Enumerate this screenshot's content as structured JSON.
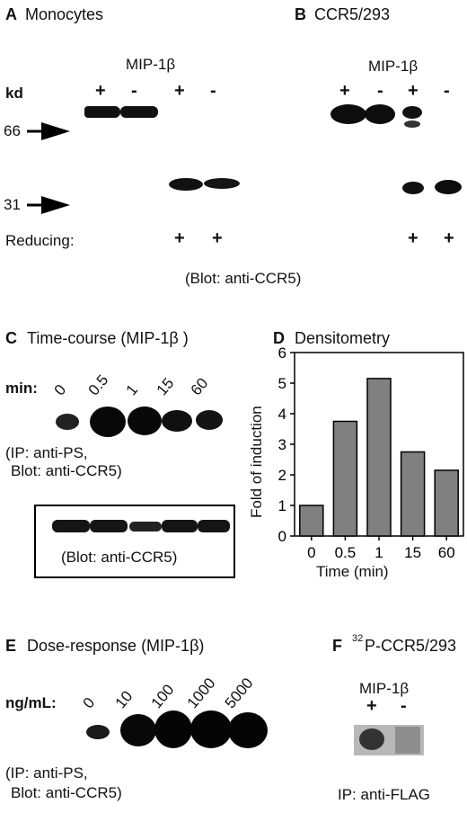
{
  "panelA": {
    "letter": "A",
    "title": "Monocytes",
    "treatment": "MIP-1β",
    "kd": "kd",
    "plus1": "+",
    "minus1": "-",
    "plus2": "+",
    "minus2": "-",
    "marker66": "66",
    "marker31": "31",
    "reducing": "Reducing:",
    "rplus1": "+",
    "rplus2": "+",
    "blot": "(Blot: anti-CCR5)"
  },
  "panelB": {
    "letter": "B",
    "title": "CCR5/293",
    "treatment": "MIP-1β",
    "plus1": "+",
    "minus1": "-",
    "plus2": "+",
    "minus2": "-",
    "rplus1": "+",
    "rplus2": "+"
  },
  "panelC": {
    "letter": "C",
    "title": "Time-course (MIP-1β )",
    "min_label": "min:",
    "times": [
      "0",
      "0.5",
      "1",
      "15",
      "60"
    ],
    "ip_line1": "(IP: anti-PS,",
    "ip_line2": "Blot: anti-CCR5)",
    "box_blot": "(Blot: anti-CCR5)"
  },
  "panelD": {
    "letter": "D",
    "title": "Densitometry"
  },
  "chart_data": {
    "type": "bar",
    "categories": [
      "0",
      "0.5",
      "1",
      "15",
      "60"
    ],
    "values": [
      1.0,
      3.75,
      5.15,
      2.75,
      2.15
    ],
    "xlabel": "Time (min)",
    "ylabel": "Fold of induction",
    "ylim": [
      0,
      6
    ],
    "yticks": [
      "0",
      "1",
      "2",
      "3",
      "4",
      "5",
      "6"
    ],
    "bar_color": "#808080"
  },
  "panelE": {
    "letter": "E",
    "title": "Dose-response (MIP-1β)",
    "ng_label": "ng/mL:",
    "doses": [
      "0",
      "10",
      "100",
      "1000",
      "5000"
    ],
    "ip_line1": "(IP: anti-PS,",
    "ip_line2": "Blot: anti-CCR5)"
  },
  "panelF": {
    "letter": "F",
    "title_sup": "32",
    "title": "P-CCR5/293",
    "treatment": "MIP-1β",
    "plus": "+",
    "minus": "-",
    "ip": "IP: anti-FLAG"
  }
}
